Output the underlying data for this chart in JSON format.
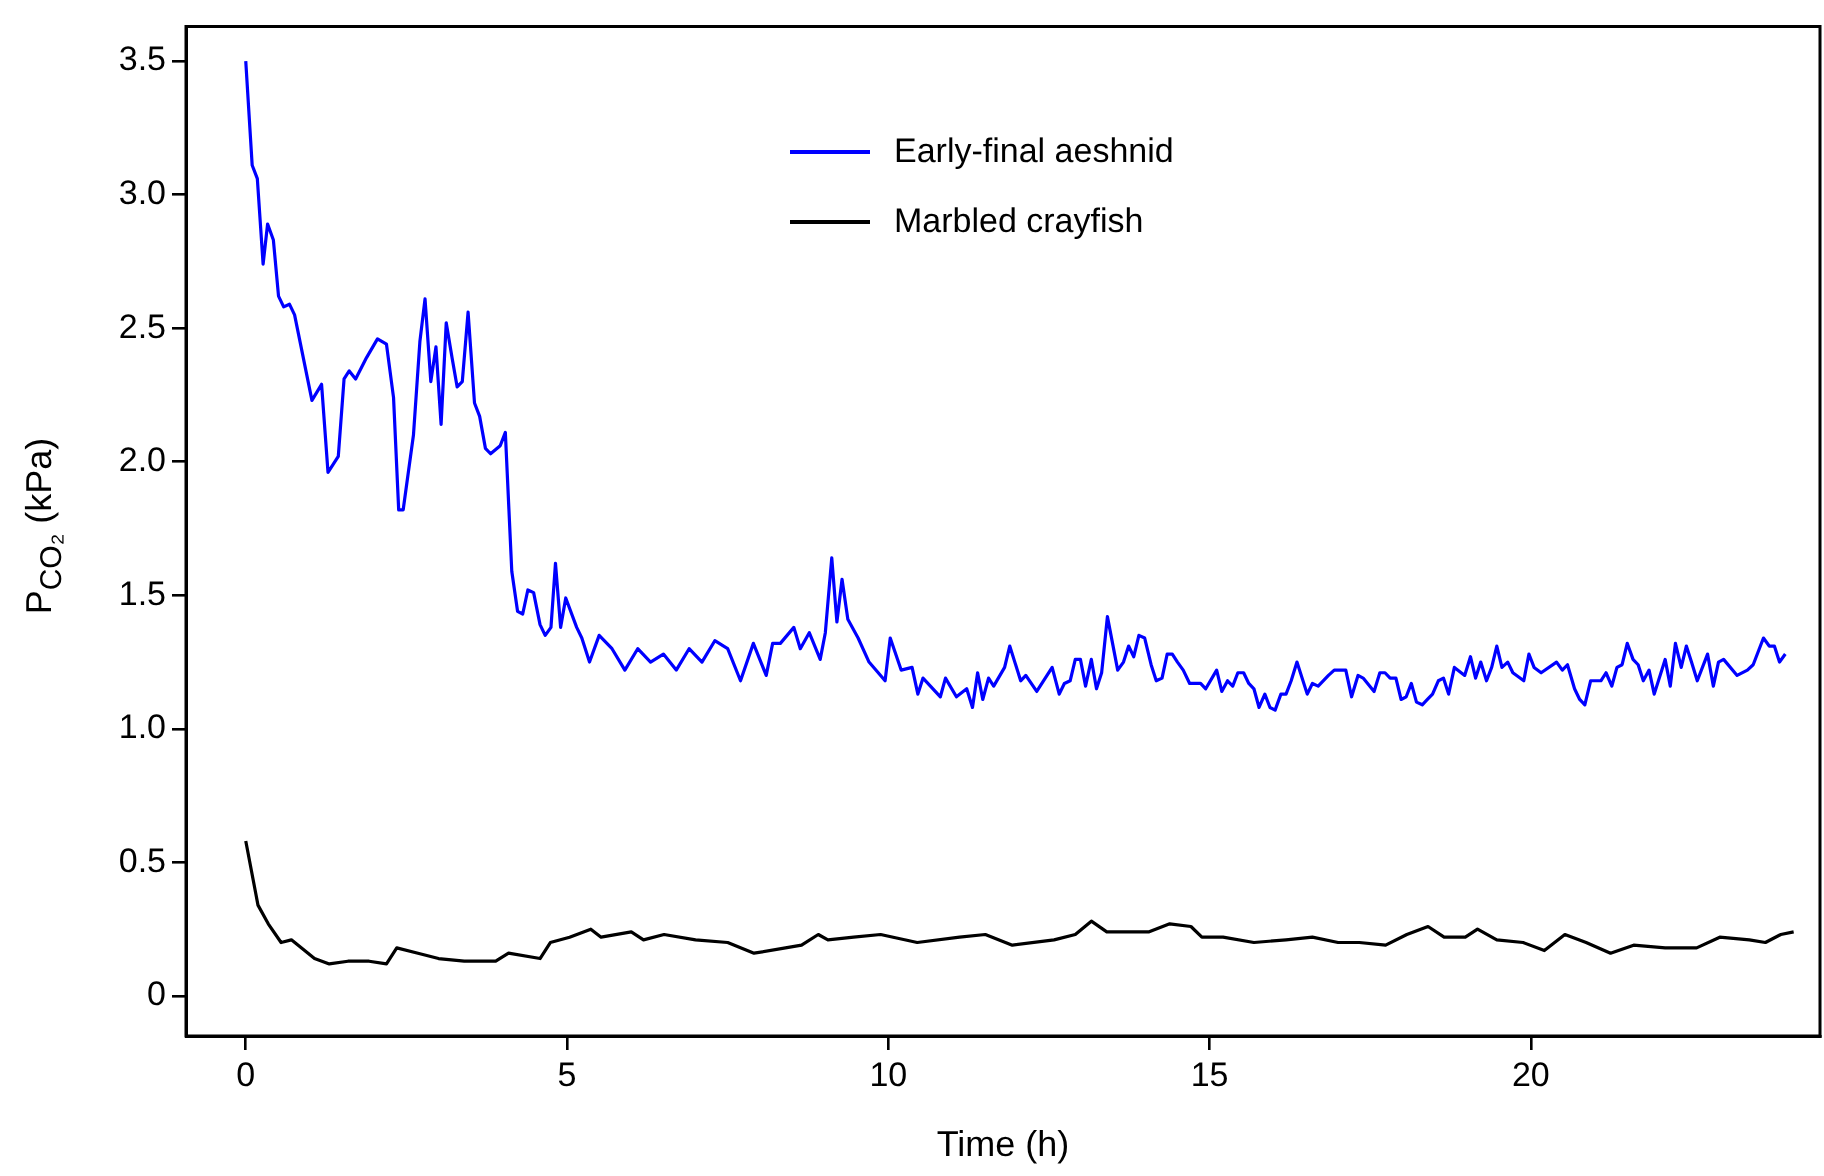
{
  "chart_data": {
    "type": "line",
    "xlabel": "Time (h)",
    "ylabel": "P$_{CO₂}$ (kPa)",
    "xlim": [
      -0.93,
      24.5
    ],
    "ylim": [
      -0.15,
      3.63
    ],
    "xticks": [
      0,
      5,
      10,
      15,
      20
    ],
    "yticks": [
      0,
      0.5,
      {
        "value": 1,
        "label": "1.0"
      },
      1.5,
      {
        "value": 2,
        "label": "2.0"
      },
      2.5,
      {
        "value": 3,
        "label": "3.0"
      },
      3.5
    ],
    "grid": false,
    "legend": "top",
    "marker": "none",
    "line_style": "solid",
    "series": [
      {
        "name": "Early-final aeshnid",
        "color": "#0000ff",
        "x": [
          0,
          0.1,
          0.18,
          0.27,
          0.34,
          0.43,
          0.51,
          0.59,
          0.68,
          0.76,
          1.03,
          1.18,
          1.28,
          1.44,
          1.53,
          1.61,
          1.71,
          1.88,
          2.05,
          2.19,
          2.3,
          2.38,
          2.45,
          2.61,
          2.71,
          2.79,
          2.88,
          2.96,
          3.04,
          3.12,
          3.21,
          3.29,
          3.37,
          3.46,
          3.56,
          3.64,
          3.73,
          3.81,
          3.96,
          4.04,
          4.14,
          4.23,
          4.31,
          4.39,
          4.48,
          4.58,
          4.66,
          4.75,
          4.82,
          4.9,
          4.98,
          5.15,
          5.23,
          5.35,
          5.5,
          5.7,
          5.9,
          6.1,
          6.3,
          6.5,
          6.7,
          6.9,
          7.1,
          7.3,
          7.5,
          7.7,
          7.9,
          8.1,
          8.2,
          8.32,
          8.53,
          8.63,
          8.77,
          8.94,
          9.02,
          9.12,
          9.2,
          9.28,
          9.37,
          9.53,
          9.7,
          9.95,
          10.03,
          10.2,
          10.37,
          10.46,
          10.54,
          10.81,
          10.89,
          11.06,
          11.22,
          11.31,
          11.39,
          11.47,
          11.56,
          11.64,
          11.81,
          11.89,
          12.06,
          12.14,
          12.31,
          12.55,
          12.66,
          12.74,
          12.83,
          12.91,
          12.99,
          13.07,
          13.16,
          13.24,
          13.32,
          13.41,
          13.57,
          13.66,
          13.74,
          13.82,
          13.9,
          13.99,
          14.09,
          14.17,
          14.26,
          14.34,
          14.42,
          14.5,
          14.59,
          14.69,
          14.86,
          14.94,
          15.11,
          15.19,
          15.28,
          15.36,
          15.44,
          15.53,
          15.61,
          15.69,
          15.77,
          15.86,
          15.94,
          16.02,
          16.11,
          16.19,
          16.27,
          16.36,
          16.52,
          16.6,
          16.69,
          16.85,
          16.94,
          17.12,
          17.21,
          17.31,
          17.39,
          17.56,
          17.65,
          17.73,
          17.81,
          17.9,
          17.98,
          18.06,
          18.14,
          18.22,
          18.31,
          18.39,
          18.47,
          18.56,
          18.64,
          18.72,
          18.81,
          18.97,
          19.06,
          19.14,
          19.22,
          19.31,
          19.39,
          19.47,
          19.55,
          19.64,
          19.72,
          19.89,
          19.97,
          20.05,
          20.16,
          20.4,
          20.49,
          20.57,
          20.68,
          20.76,
          20.84,
          20.93,
          21.09,
          21.17,
          21.26,
          21.34,
          21.42,
          21.5,
          21.59,
          21.67,
          21.75,
          21.84,
          21.92,
          22.09,
          22.17,
          22.25,
          22.34,
          22.42,
          22.5,
          22.59,
          22.75,
          22.84,
          22.92,
          23,
          23.21,
          23.37,
          23.46,
          23.62,
          23.71,
          23.79,
          23.87,
          23.96
        ],
        "values": [
          3.5,
          3.11,
          3.06,
          2.74,
          2.89,
          2.83,
          2.62,
          2.58,
          2.59,
          2.55,
          2.23,
          2.29,
          1.96,
          2.02,
          2.31,
          2.34,
          2.31,
          2.39,
          2.46,
          2.44,
          2.24,
          1.82,
          1.82,
          2.1,
          2.45,
          2.61,
          2.3,
          2.43,
          2.14,
          2.52,
          2.39,
          2.28,
          2.3,
          2.56,
          2.22,
          2.17,
          2.05,
          2.03,
          2.06,
          2.11,
          1.59,
          1.44,
          1.43,
          1.52,
          1.51,
          1.39,
          1.35,
          1.38,
          1.62,
          1.38,
          1.49,
          1.38,
          1.34,
          1.25,
          1.35,
          1.3,
          1.22,
          1.3,
          1.25,
          1.28,
          1.22,
          1.3,
          1.25,
          1.33,
          1.3,
          1.18,
          1.32,
          1.2,
          1.32,
          1.32,
          1.38,
          1.3,
          1.36,
          1.26,
          1.36,
          1.64,
          1.4,
          1.56,
          1.41,
          1.34,
          1.25,
          1.18,
          1.34,
          1.22,
          1.23,
          1.13,
          1.19,
          1.12,
          1.19,
          1.12,
          1.15,
          1.08,
          1.21,
          1.11,
          1.19,
          1.16,
          1.23,
          1.31,
          1.18,
          1.2,
          1.14,
          1.23,
          1.13,
          1.17,
          1.18,
          1.26,
          1.26,
          1.16,
          1.26,
          1.15,
          1.21,
          1.42,
          1.22,
          1.25,
          1.31,
          1.27,
          1.35,
          1.34,
          1.24,
          1.18,
          1.19,
          1.28,
          1.28,
          1.25,
          1.22,
          1.17,
          1.17,
          1.15,
          1.22,
          1.14,
          1.18,
          1.16,
          1.21,
          1.21,
          1.17,
          1.15,
          1.08,
          1.13,
          1.08,
          1.07,
          1.13,
          1.13,
          1.18,
          1.25,
          1.13,
          1.17,
          1.16,
          1.2,
          1.22,
          1.22,
          1.12,
          1.2,
          1.19,
          1.14,
          1.21,
          1.21,
          1.19,
          1.19,
          1.11,
          1.12,
          1.17,
          1.1,
          1.09,
          1.11,
          1.13,
          1.18,
          1.19,
          1.13,
          1.23,
          1.2,
          1.27,
          1.19,
          1.25,
          1.18,
          1.23,
          1.31,
          1.23,
          1.25,
          1.21,
          1.18,
          1.28,
          1.23,
          1.21,
          1.25,
          1.22,
          1.24,
          1.15,
          1.11,
          1.09,
          1.18,
          1.18,
          1.21,
          1.16,
          1.23,
          1.24,
          1.32,
          1.26,
          1.24,
          1.18,
          1.22,
          1.13,
          1.26,
          1.16,
          1.32,
          1.23,
          1.31,
          1.25,
          1.18,
          1.28,
          1.16,
          1.25,
          1.26,
          1.2,
          1.22,
          1.24,
          1.34,
          1.31,
          1.31,
          1.25,
          1.28
        ]
      },
      {
        "name": "Marbled crayfish",
        "color": "#000000",
        "x": [
          0,
          0.19,
          0.35,
          0.55,
          0.71,
          1.07,
          1.3,
          1.59,
          1.92,
          2.19,
          2.35,
          2.68,
          3,
          3.4,
          3.89,
          4.09,
          4.58,
          4.74,
          5.04,
          5.37,
          5.53,
          6,
          6.19,
          6.51,
          7,
          7.5,
          7.91,
          8.4,
          8.65,
          8.91,
          9.06,
          9.46,
          9.88,
          10.45,
          11.11,
          11.51,
          11.93,
          12.58,
          12.91,
          13.16,
          13.4,
          13.73,
          14.06,
          14.38,
          14.71,
          14.88,
          15.21,
          15.69,
          16.19,
          16.6,
          17,
          17.33,
          17.74,
          18.07,
          18.4,
          18.65,
          18.98,
          19.17,
          19.47,
          19.88,
          20.21,
          20.53,
          20.86,
          21.24,
          21.6,
          22.09,
          22.58,
          22.94,
          23.4,
          23.65,
          23.89,
          24.09
        ],
        "values": [
          0.58,
          0.34,
          0.27,
          0.2,
          0.21,
          0.14,
          0.12,
          0.13,
          0.13,
          0.12,
          0.18,
          0.16,
          0.14,
          0.13,
          0.13,
          0.16,
          0.14,
          0.2,
          0.22,
          0.25,
          0.22,
          0.24,
          0.21,
          0.23,
          0.21,
          0.2,
          0.16,
          0.18,
          0.19,
          0.23,
          0.21,
          0.22,
          0.23,
          0.2,
          0.22,
          0.23,
          0.19,
          0.21,
          0.23,
          0.28,
          0.24,
          0.24,
          0.24,
          0.27,
          0.26,
          0.22,
          0.22,
          0.2,
          0.21,
          0.22,
          0.2,
          0.2,
          0.19,
          0.23,
          0.26,
          0.22,
          0.22,
          0.25,
          0.21,
          0.2,
          0.17,
          0.23,
          0.2,
          0.16,
          0.19,
          0.18,
          0.18,
          0.22,
          0.21,
          0.2,
          0.23,
          0.24
        ]
      }
    ]
  }
}
